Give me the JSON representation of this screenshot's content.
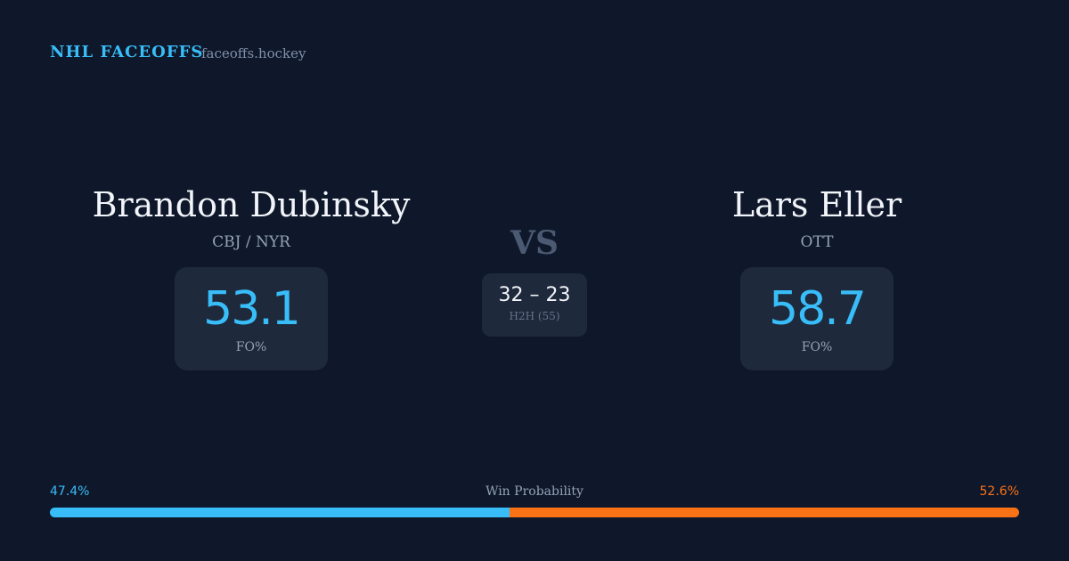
{
  "header": {
    "brand": "NHL FACEOFFS",
    "site": "faceoffs.hockey"
  },
  "players": [
    {
      "name": "Brandon Dubinsky",
      "team": "CBJ / NYR",
      "fo_pct": 53.1,
      "fo_label": "FO%"
    },
    {
      "name": "Lars Eller",
      "team": "OTT",
      "fo_pct": 58.7,
      "fo_label": "FO%"
    }
  ],
  "vs": "VS",
  "h2h": {
    "score": "32 – 23",
    "label": "H2H (55)"
  },
  "win_probability": {
    "title": "Win Probability",
    "left": {
      "value": 47.4,
      "label": "47.4%",
      "color": "#38bdf8"
    },
    "right": {
      "value": 52.6,
      "label": "52.6%",
      "color": "#f97316"
    }
  }
}
